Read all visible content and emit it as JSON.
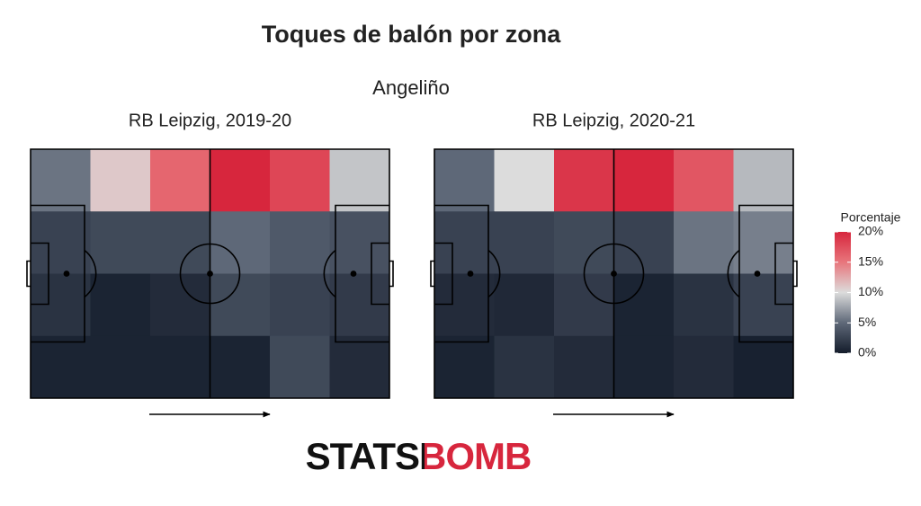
{
  "chart_data": {
    "type": "heatmap",
    "title": "Toques de balón por zona",
    "subtitle": "Angeliño",
    "logo": "STATSBOMB",
    "legend_title": "Porcentaje",
    "clim": [
      0,
      20
    ],
    "colorscale": [
      "#141c2b",
      "#5e6878",
      "#dcdcdc",
      "#e8767c",
      "#d7263d"
    ],
    "cticks": [
      {
        "value": 0,
        "label": "0%"
      },
      {
        "value": 5,
        "label": "5%"
      },
      {
        "value": 10,
        "label": "10%"
      },
      {
        "value": 15,
        "label": "15%"
      },
      {
        "value": 20,
        "label": "20%"
      }
    ],
    "panels": [
      {
        "title": "RB Leipzig, 2019-20",
        "values": [
          [
            5.5,
            11,
            16,
            20,
            18,
            9
          ],
          [
            2.5,
            3,
            3,
            5,
            4,
            3.5
          ],
          [
            1.5,
            0.5,
            1,
            3,
            2.5,
            2
          ],
          [
            0.5,
            0.5,
            0.5,
            0.5,
            3,
            1
          ]
        ]
      },
      {
        "title": "RB Leipzig, 2020-21",
        "values": [
          [
            5,
            10,
            19,
            20,
            17,
            8.5
          ],
          [
            2.5,
            2.5,
            3,
            2.5,
            5.5,
            6
          ],
          [
            1,
            0.8,
            2,
            0.5,
            1.5,
            2.5
          ],
          [
            0.5,
            1.5,
            1,
            0.5,
            1,
            0.3
          ]
        ]
      }
    ]
  }
}
